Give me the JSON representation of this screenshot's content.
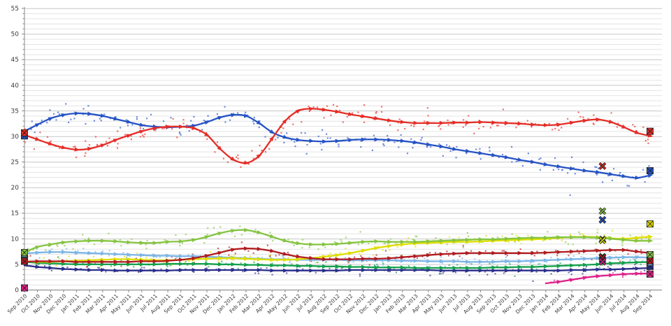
{
  "chart_data": {
    "type": "scatter",
    "subtype": "poll-tracking-lines-with-scatter",
    "title": "",
    "xlabel": "",
    "ylabel": "",
    "ylim": [
      0,
      55
    ],
    "y_ticks": [
      0,
      5,
      10,
      15,
      20,
      25,
      30,
      35,
      40,
      45,
      50,
      55
    ],
    "grid": {
      "horizontal_minor_step": 1,
      "horizontal_major_step": 5,
      "vertical": false
    },
    "legend_position": "none",
    "colors": {
      "grid_minor": "#e4e4e4",
      "grid_major": "#c7c7c7",
      "axis": "#8a8a8a",
      "tick_label": "#3a3a3a",
      "background": "#ffffff"
    },
    "x_categories": [
      "Sep 2010",
      "Oct 2010",
      "Nov 2010",
      "Dec 2010",
      "Jan 2011",
      "Feb 2011",
      "Mar 2011",
      "Apr 2011",
      "May 2011",
      "Jun 2011",
      "Jul 2011",
      "Aug 2011",
      "Sep 2011",
      "Oct 2011",
      "Nov 2011",
      "Dec 2011",
      "Jan 2012",
      "Feb 2012",
      "Mar 2012",
      "Apr 2012",
      "May 2012",
      "Jun 2012",
      "Jul 2012",
      "Aug 2012",
      "Sep 2012",
      "Oct 2012",
      "Nov 2012",
      "Dec 2012",
      "Jan 2013",
      "Feb 2013",
      "Mar 2013",
      "Apr 2013",
      "May 2013",
      "Jun 2013",
      "Jul 2013",
      "Aug 2013",
      "Sep 2013",
      "Oct 2013",
      "Nov 2013",
      "Dec 2013",
      "Jan 2014",
      "Feb 2014",
      "Mar 2014",
      "Apr 2014",
      "May 2014",
      "Jun 2014",
      "Jul 2014",
      "Aug 2014",
      "Sep 2014"
    ],
    "series": [
      {
        "name": "navy",
        "color": "#2b2e8c",
        "trend": [
          4.8,
          4.5,
          4.3,
          4.1,
          4.0,
          3.9,
          3.9,
          3.8,
          3.8,
          3.8,
          3.8,
          3.8,
          3.9,
          3.9,
          3.9,
          3.9,
          3.9,
          3.9,
          3.9,
          3.8,
          3.8,
          3.8,
          3.8,
          3.8,
          3.8,
          3.9,
          3.9,
          3.9,
          3.9,
          3.9,
          3.9,
          3.9,
          3.8,
          3.8,
          3.8,
          3.8,
          3.8,
          3.8,
          3.8,
          3.8,
          3.8,
          3.8,
          3.9,
          3.9,
          4.0,
          4.0,
          4.1,
          4.2,
          4.3
        ],
        "scatter": {
          "density": 2,
          "spread": 0.7
        },
        "square_markers": [
          {
            "month_index": 0,
            "value": 5.6
          },
          {
            "month_index": 48,
            "value": 4.6
          }
        ],
        "x_markers": [
          {
            "month_index": 44.35,
            "value": 5.9
          }
        ]
      },
      {
        "name": "green",
        "color": "#13a04b",
        "trend": [
          5.5,
          5.3,
          5.2,
          5.1,
          5.0,
          5.0,
          5.0,
          5.0,
          5.0,
          5.0,
          5.0,
          5.1,
          5.1,
          5.1,
          5.1,
          5.0,
          5.0,
          4.9,
          4.9,
          4.8,
          4.8,
          4.7,
          4.7,
          4.6,
          4.6,
          4.5,
          4.5,
          4.4,
          4.4,
          4.4,
          4.3,
          4.3,
          4.3,
          4.3,
          4.3,
          4.3,
          4.4,
          4.4,
          4.5,
          4.5,
          4.6,
          4.7,
          4.8,
          4.9,
          5.0,
          5.2,
          5.3,
          5.4,
          5.5
        ],
        "scatter": {
          "density": 2,
          "spread": 0.8
        },
        "square_markers": [
          {
            "month_index": 0,
            "value": 6.6
          },
          {
            "month_index": 48,
            "value": 6.1
          }
        ],
        "x_markers": [
          {
            "month_index": 44.35,
            "value": 6.5
          }
        ]
      },
      {
        "name": "light-blue",
        "color": "#7cb5e6",
        "trend": [
          7.1,
          7.3,
          7.4,
          7.4,
          7.3,
          7.2,
          7.1,
          7.0,
          6.9,
          6.8,
          6.7,
          6.7,
          6.6,
          6.6,
          6.5,
          6.4,
          6.3,
          6.2,
          6.1,
          6.0,
          6.0,
          5.9,
          5.9,
          5.9,
          5.9,
          5.8,
          5.8,
          5.8,
          5.8,
          5.7,
          5.7,
          5.6,
          5.6,
          5.6,
          5.5,
          5.5,
          5.5,
          5.6,
          5.6,
          5.7,
          5.8,
          5.9,
          6.0,
          6.1,
          6.2,
          6.3,
          6.4,
          6.4,
          6.3
        ],
        "scatter": {
          "density": 2,
          "spread": 0.8
        },
        "square_markers": [
          {
            "month_index": 0,
            "value": 7.1
          },
          {
            "month_index": 48,
            "value": 5.4
          }
        ],
        "x_markers": [
          {
            "month_index": 44.35,
            "value": 9.9
          }
        ]
      },
      {
        "name": "yellow",
        "color": "#dede00",
        "trend": [
          5.6,
          5.5,
          5.5,
          5.6,
          5.7,
          5.8,
          5.9,
          6.0,
          6.0,
          5.9,
          5.8,
          5.8,
          5.9,
          6.0,
          6.1,
          6.2,
          6.2,
          6.1,
          6.0,
          5.9,
          5.9,
          6.0,
          6.2,
          6.5,
          6.8,
          7.2,
          7.7,
          8.2,
          8.6,
          8.9,
          9.1,
          9.2,
          9.3,
          9.4,
          9.4,
          9.5,
          9.6,
          9.7,
          9.8,
          9.9,
          10.0,
          10.2,
          10.3,
          10.4,
          10.3,
          10.1,
          10.0,
          10.2,
          10.4
        ],
        "scatter": {
          "density": 2.5,
          "spread": 1.0
        },
        "square_markers": [
          {
            "month_index": 0,
            "value": 5.7
          },
          {
            "month_index": 48,
            "value": 12.9
          }
        ],
        "x_markers": [
          {
            "month_index": 44.35,
            "value": 9.7
          }
        ]
      },
      {
        "name": "dark-red",
        "color": "#b01c20",
        "trend": [
          5.5,
          5.6,
          5.6,
          5.6,
          5.5,
          5.5,
          5.5,
          5.5,
          5.5,
          5.6,
          5.6,
          5.7,
          5.9,
          6.2,
          6.7,
          7.3,
          7.9,
          8.1,
          8.0,
          7.6,
          7.0,
          6.5,
          6.2,
          6.0,
          6.0,
          6.0,
          6.1,
          6.1,
          6.2,
          6.4,
          6.6,
          6.8,
          7.0,
          7.1,
          7.2,
          7.2,
          7.2,
          7.2,
          7.2,
          7.2,
          7.3,
          7.4,
          7.5,
          7.6,
          7.7,
          7.8,
          7.8,
          7.5,
          7.2
        ],
        "scatter": {
          "density": 2,
          "spread": 0.9
        },
        "square_markers": [
          {
            "month_index": 0,
            "value": 5.6
          },
          {
            "month_index": 48,
            "value": 5.7
          }
        ],
        "x_markers": [
          {
            "month_index": 44.35,
            "value": 6.3
          }
        ]
      },
      {
        "name": "light-green",
        "color": "#84c441",
        "trend": [
          7.3,
          8.4,
          8.9,
          9.3,
          9.5,
          9.6,
          9.6,
          9.5,
          9.3,
          9.2,
          9.2,
          9.4,
          9.5,
          9.8,
          10.4,
          11.1,
          11.6,
          11.7,
          11.2,
          10.4,
          9.6,
          9.1,
          8.9,
          8.9,
          9.0,
          9.2,
          9.4,
          9.5,
          9.4,
          9.4,
          9.4,
          9.5,
          9.6,
          9.7,
          9.8,
          9.9,
          9.9,
          10.0,
          10.1,
          10.2,
          10.2,
          10.3,
          10.3,
          10.3,
          10.2,
          10.0,
          9.8,
          9.6,
          9.6
        ],
        "scatter": {
          "density": 2.5,
          "spread": 1.2
        },
        "square_markers": [
          {
            "month_index": 0,
            "value": 7.3
          },
          {
            "month_index": 48,
            "value": 6.9
          }
        ],
        "x_markers": [
          {
            "month_index": 44.35,
            "value": 15.4
          }
        ]
      },
      {
        "name": "magenta",
        "color": "#e0218a",
        "trend": [
          null,
          null,
          null,
          null,
          null,
          null,
          null,
          null,
          null,
          null,
          null,
          null,
          null,
          null,
          null,
          null,
          null,
          null,
          null,
          null,
          null,
          null,
          null,
          null,
          null,
          null,
          null,
          null,
          null,
          null,
          null,
          null,
          null,
          null,
          null,
          null,
          null,
          null,
          null,
          null,
          1.3,
          1.6,
          2.0,
          2.4,
          2.7,
          2.9,
          3.1,
          3.2,
          3.2
        ],
        "scatter": {
          "density": 2,
          "spread": 0.5
        },
        "square_markers": [
          {
            "month_index": 0,
            "value": 0.4
          },
          {
            "month_index": 48,
            "value": 3.1
          }
        ],
        "x_markers": [
          {
            "month_index": 44.35,
            "value": 5.5
          }
        ]
      },
      {
        "name": "blue",
        "color": "#2653c5",
        "trend": [
          31.0,
          32.3,
          33.5,
          34.2,
          34.5,
          34.4,
          34.0,
          33.4,
          32.8,
          32.2,
          31.9,
          31.8,
          31.9,
          32.1,
          32.8,
          33.7,
          34.2,
          34.0,
          32.6,
          30.8,
          29.8,
          29.3,
          29.1,
          29.0,
          29.1,
          29.3,
          29.4,
          29.4,
          29.3,
          29.1,
          28.8,
          28.4,
          28.0,
          27.5,
          27.1,
          26.7,
          26.3,
          25.9,
          25.4,
          25.0,
          24.5,
          24.1,
          23.7,
          23.3,
          23.0,
          22.6,
          22.2,
          21.9,
          22.4
        ],
        "scatter": {
          "density": 3.5,
          "spread": 1.8
        },
        "square_markers": [
          {
            "month_index": 0,
            "value": 30.1
          },
          {
            "month_index": 48,
            "value": 23.3
          }
        ],
        "x_markers": [
          {
            "month_index": 44.35,
            "value": 13.7
          }
        ]
      },
      {
        "name": "red",
        "color": "#e52d27",
        "trend": [
          30.3,
          29.4,
          28.5,
          27.8,
          27.4,
          27.6,
          28.3,
          29.3,
          30.2,
          31.0,
          31.6,
          31.9,
          31.9,
          31.6,
          30.3,
          27.6,
          25.5,
          24.8,
          26.2,
          29.6,
          33.0,
          35.0,
          35.4,
          35.2,
          34.8,
          34.3,
          33.9,
          33.5,
          33.1,
          32.8,
          32.6,
          32.6,
          32.6,
          32.7,
          32.7,
          32.8,
          32.7,
          32.6,
          32.5,
          32.3,
          32.2,
          32.3,
          32.7,
          33.1,
          33.3,
          32.8,
          31.8,
          30.7,
          30.1
        ],
        "scatter": {
          "density": 3.5,
          "spread": 1.8
        },
        "square_markers": [
          {
            "month_index": 0,
            "value": 30.7
          },
          {
            "month_index": 48,
            "value": 31.0
          }
        ],
        "x_markers": [
          {
            "month_index": 44.35,
            "value": 24.2
          }
        ]
      }
    ]
  }
}
